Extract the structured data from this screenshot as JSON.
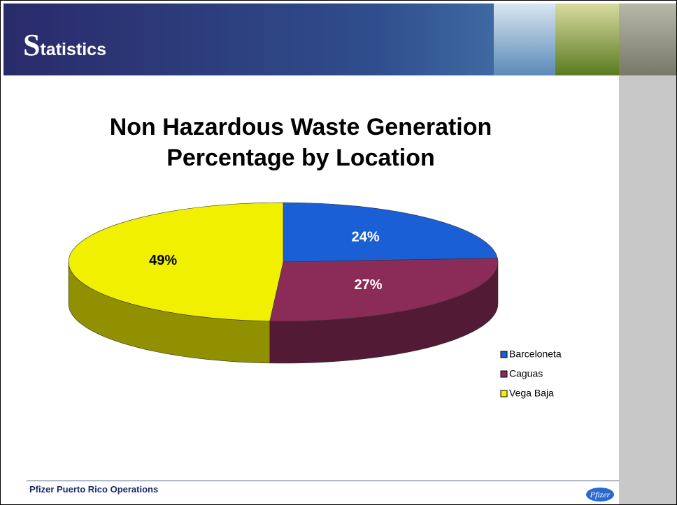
{
  "header": {
    "title": "Statistics"
  },
  "footer": {
    "text": "Pfizer Puerto Rico Operations",
    "logo": "Pfizer"
  },
  "chart_data": {
    "type": "pie",
    "title": "Non Hazardous Waste Generation Percentage by Location",
    "categories": [
      "Barceloneta",
      "Caguas",
      "Vega Baja"
    ],
    "values": [
      24,
      27,
      49
    ],
    "value_labels": [
      "24%",
      "27%",
      "49%"
    ],
    "colors": [
      "#1a5fd6",
      "#8b2c58",
      "#f0f000"
    ],
    "legend": "right"
  }
}
